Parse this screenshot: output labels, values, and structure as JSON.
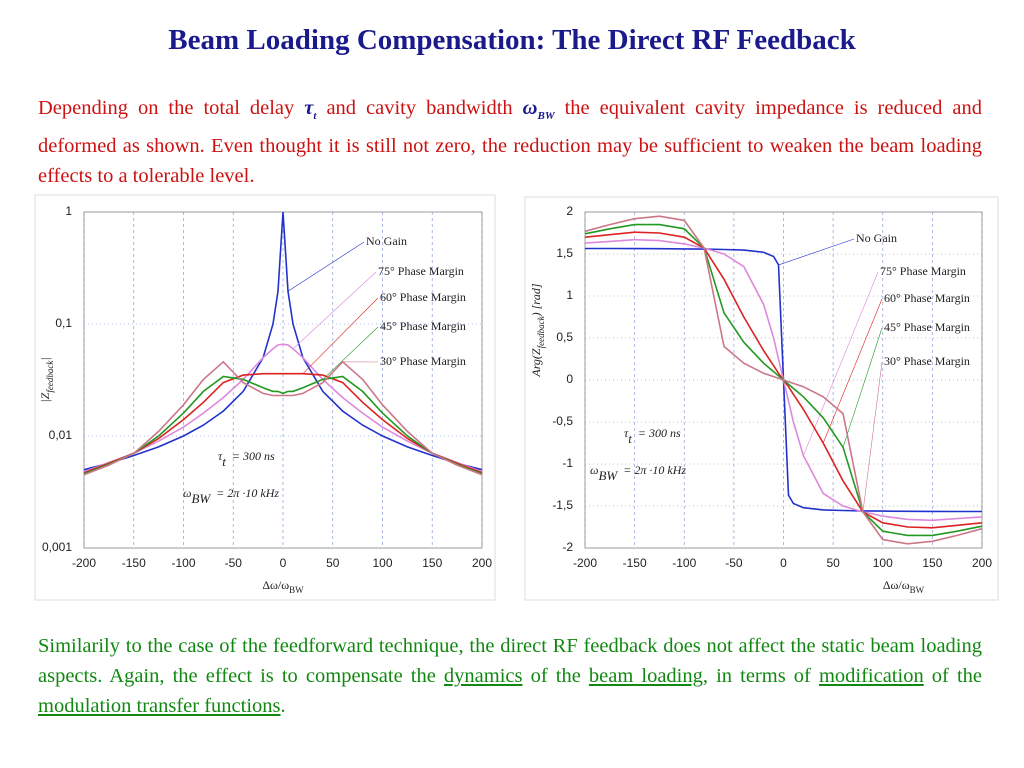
{
  "title": "Beam Loading Compensation: The Direct RF Feedback",
  "intro": [
    {
      "text": "Depending on the total delay "
    },
    {
      "symbol": "τ",
      "sub": "t"
    },
    {
      "text": " and cavity bandwidth "
    },
    {
      "symbol": "ω",
      "sub": "BW"
    },
    {
      "text": " the equivalent cavity impedance is reduced and deformed as shown. Even thought it is still not zero, the reduction may be sufficient to weaken the beam loading effects to a tolerable level."
    }
  ],
  "outro": [
    {
      "text": "Similarily to the case of the feedforward technique, the direct RF feedback does not affect the static beam loading aspects. Again, the effect is to compensate the "
    },
    {
      "text": "dynamics",
      "underline": true
    },
    {
      "text": " of the "
    },
    {
      "text": "beam loading",
      "underline": true
    },
    {
      "text": ", in terms of "
    },
    {
      "text": "modification",
      "underline": true
    },
    {
      "text": " of the "
    },
    {
      "text": "modulation transfer functions",
      "underline": true
    },
    {
      "text": "."
    }
  ],
  "chart_data": [
    {
      "type": "line",
      "log_y": true,
      "grid": true,
      "xlabel": {
        "main": "Δω/ω",
        "sub": "BW"
      },
      "ylabel": {
        "main": "|Z",
        "sub": "feedback",
        "end": "|"
      },
      "formulas": [
        {
          "symbol": "τ",
          "sub": "t",
          "rest": "= 300 ns"
        },
        {
          "symbol": "ω",
          "sub": "BW",
          "rest": "= 2π ·10 kHz"
        }
      ],
      "xlim": [
        -200,
        200
      ],
      "xticks": [
        -200,
        -150,
        -100,
        -50,
        0,
        50,
        100,
        150,
        200
      ],
      "ylim": [
        0.001,
        1
      ],
      "yticks": [
        1,
        {
          "value": 0.1,
          "label": "0,1"
        },
        {
          "value": 0.01,
          "label": "0,01"
        },
        {
          "value": 0.001,
          "label": "0,001"
        }
      ],
      "x": [
        -200,
        -175,
        -150,
        -125,
        -100,
        -80,
        -60,
        -40,
        -20,
        -10,
        -5,
        0,
        5,
        10,
        20,
        40,
        60,
        80,
        100,
        125,
        150,
        175,
        200
      ],
      "series": [
        {
          "name": "No Gain",
          "color": "#2233cc",
          "values": [
            0.005,
            0.0057,
            0.0067,
            0.008,
            0.01,
            0.0125,
            0.0167,
            0.025,
            0.05,
            0.1,
            0.196,
            1,
            0.196,
            0.1,
            0.05,
            0.025,
            0.0167,
            0.0125,
            0.01,
            0.008,
            0.0067,
            0.0057,
            0.005
          ]
        },
        {
          "name": "75° Phase Margin",
          "color": "#dd88dd",
          "values": [
            0.0048,
            0.0058,
            0.007,
            0.009,
            0.012,
            0.016,
            0.022,
            0.032,
            0.05,
            0.06,
            0.065,
            0.066,
            0.065,
            0.06,
            0.05,
            0.032,
            0.022,
            0.016,
            0.012,
            0.009,
            0.007,
            0.0058,
            0.0048
          ]
        },
        {
          "name": "60° Phase Margin",
          "color": "#dd2222",
          "values": [
            0.0047,
            0.0057,
            0.007,
            0.0095,
            0.014,
            0.02,
            0.03,
            0.035,
            0.036,
            0.036,
            0.036,
            0.036,
            0.036,
            0.036,
            0.036,
            0.035,
            0.03,
            0.02,
            0.014,
            0.0095,
            0.007,
            0.0057,
            0.0047
          ]
        },
        {
          "name": "45° Phase Margin",
          "color": "#229922",
          "values": [
            0.0046,
            0.0056,
            0.007,
            0.01,
            0.016,
            0.025,
            0.034,
            0.032,
            0.027,
            0.025,
            0.025,
            0.024,
            0.025,
            0.025,
            0.027,
            0.032,
            0.034,
            0.025,
            0.016,
            0.01,
            0.007,
            0.0056,
            0.0046
          ]
        },
        {
          "name": "30° Phase Margin",
          "color": "#cc7788",
          "values": [
            0.0045,
            0.0055,
            0.007,
            0.011,
            0.019,
            0.032,
            0.046,
            0.03,
            0.024,
            0.023,
            0.023,
            0.023,
            0.023,
            0.023,
            0.024,
            0.03,
            0.046,
            0.032,
            0.019,
            0.011,
            0.007,
            0.0055,
            0.0045
          ]
        }
      ]
    },
    {
      "type": "line",
      "log_y": false,
      "grid": true,
      "xlabel": {
        "main": "Δω/ω",
        "sub": "BW"
      },
      "ylabel": {
        "main": "Arg(Z",
        "sub": "feedback",
        "end": ") [rad]"
      },
      "formulas": [
        {
          "symbol": "τ",
          "sub": "t",
          "rest": "= 300 ns"
        },
        {
          "symbol": "ω",
          "sub": "BW",
          "rest": "= 2π ·10 kHz"
        }
      ],
      "xlim": [
        -200,
        200
      ],
      "xticks": [
        -200,
        -150,
        -100,
        -50,
        0,
        50,
        100,
        150,
        200
      ],
      "ylim": [
        -2,
        2
      ],
      "yticks": [
        2,
        {
          "value": 1.5,
          "label": "1,5"
        },
        1,
        {
          "value": 0.5,
          "label": "0,5"
        },
        0,
        {
          "value": -0.5,
          "label": "-0,5"
        },
        -1,
        {
          "value": -1.5,
          "label": "-1,5"
        },
        -2
      ],
      "x": [
        -200,
        -175,
        -150,
        -125,
        -100,
        -80,
        -60,
        -40,
        -20,
        -10,
        -5,
        0,
        5,
        10,
        20,
        40,
        60,
        80,
        100,
        125,
        150,
        175,
        200
      ],
      "series": [
        {
          "name": "No Gain",
          "color": "#2233cc",
          "values": [
            1.566,
            1.565,
            1.564,
            1.563,
            1.561,
            1.558,
            1.554,
            1.546,
            1.52,
            1.47,
            1.37,
            0,
            -1.37,
            -1.47,
            -1.52,
            -1.546,
            -1.554,
            -1.558,
            -1.561,
            -1.563,
            -1.564,
            -1.565,
            -1.566
          ]
        },
        {
          "name": "75° Phase Margin",
          "color": "#dd88dd",
          "values": [
            1.63,
            1.65,
            1.67,
            1.66,
            1.62,
            1.57,
            1.5,
            1.35,
            0.9,
            0.5,
            0.25,
            0,
            -0.25,
            -0.5,
            -0.9,
            -1.35,
            -1.5,
            -1.57,
            -1.62,
            -1.66,
            -1.67,
            -1.65,
            -1.63
          ]
        },
        {
          "name": "60° Phase Margin",
          "color": "#dd2222",
          "values": [
            1.7,
            1.73,
            1.76,
            1.75,
            1.7,
            1.57,
            1.2,
            0.75,
            0.35,
            0.17,
            0.08,
            0,
            -0.08,
            -0.17,
            -0.35,
            -0.75,
            -1.2,
            -1.57,
            -1.7,
            -1.75,
            -1.76,
            -1.73,
            -1.7
          ]
        },
        {
          "name": "45° Phase Margin",
          "color": "#229922",
          "values": [
            1.74,
            1.8,
            1.85,
            1.85,
            1.8,
            1.57,
            0.8,
            0.45,
            0.2,
            0.1,
            0.05,
            0,
            -0.05,
            -0.1,
            -0.2,
            -0.45,
            -0.8,
            -1.57,
            -1.8,
            -1.85,
            -1.85,
            -1.8,
            -1.74
          ]
        },
        {
          "name": "30° Phase Margin",
          "color": "#cc7788",
          "values": [
            1.77,
            1.85,
            1.92,
            1.95,
            1.9,
            1.57,
            0.4,
            0.2,
            0.08,
            0.04,
            0.02,
            0,
            -0.02,
            -0.04,
            -0.08,
            -0.2,
            -0.4,
            -1.57,
            -1.9,
            -1.95,
            -1.92,
            -1.85,
            -1.77
          ]
        }
      ]
    }
  ]
}
